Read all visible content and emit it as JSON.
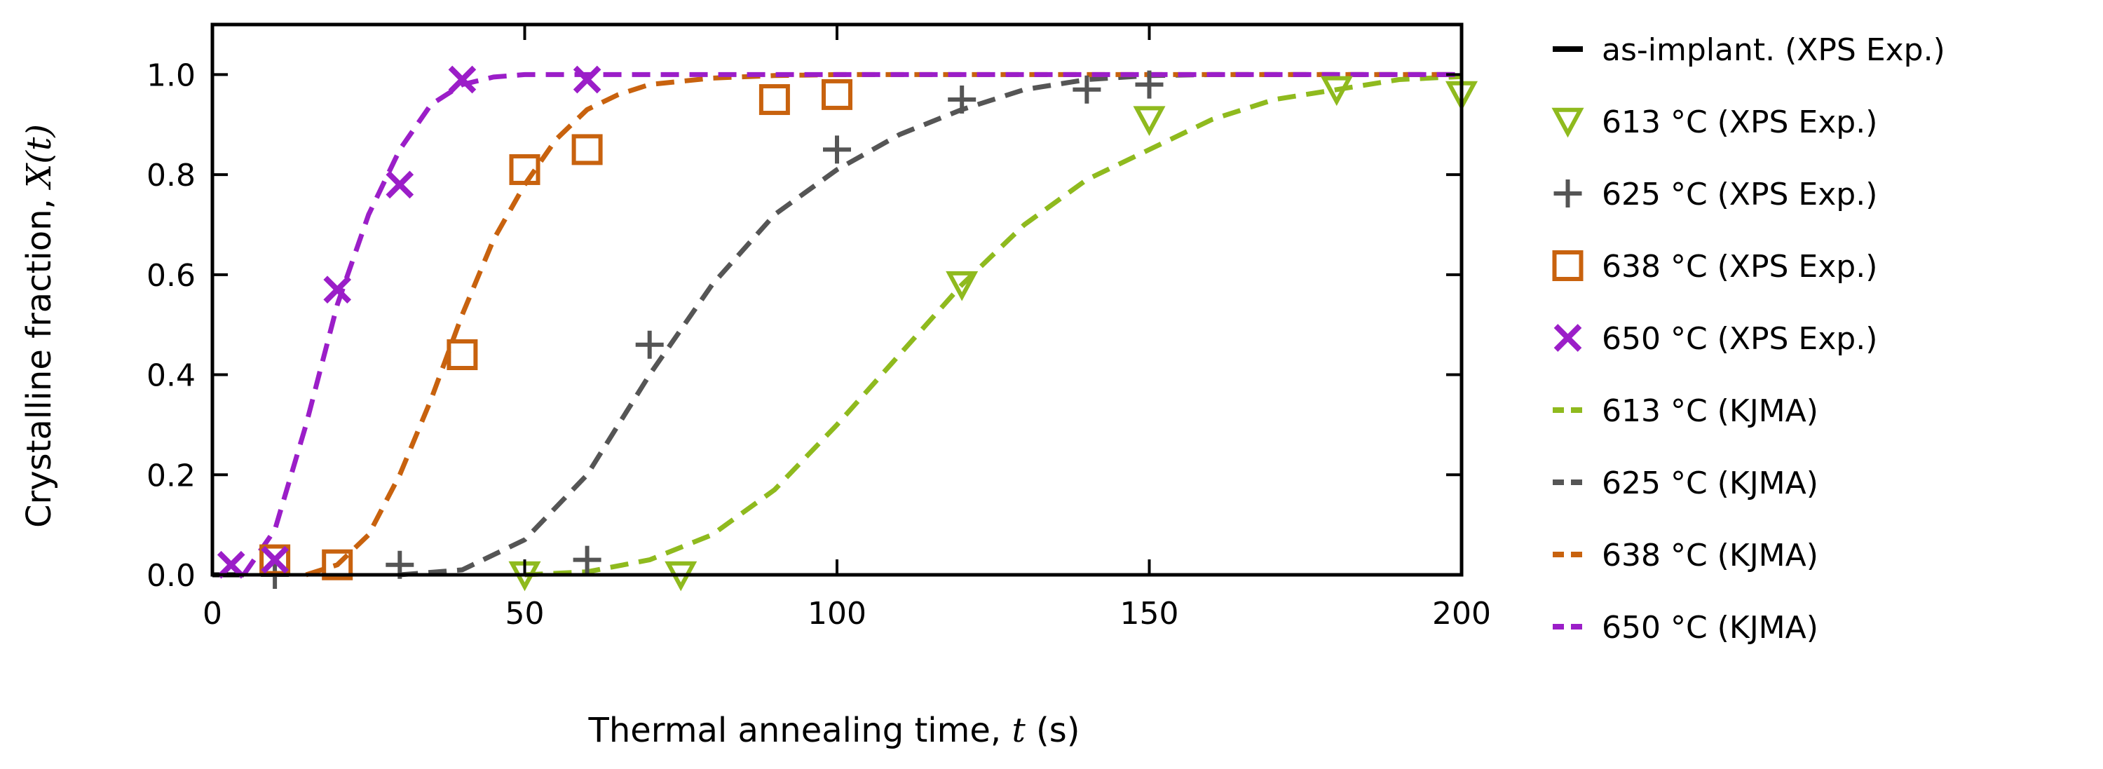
{
  "chart_data": {
    "type": "scatter",
    "title": "",
    "xlabel": {
      "text": "Thermal annealing time, ",
      "var": "t",
      "unit": " (s)"
    },
    "ylabel": {
      "text": "Crystalline fraction, ",
      "func": "X(t)"
    },
    "xlim": [
      0,
      200
    ],
    "ylim": [
      0,
      1.1
    ],
    "xticks": [
      0,
      50,
      100,
      150,
      200
    ],
    "xtick_labels": [
      "0",
      "50",
      "100",
      "150",
      "200"
    ],
    "yticks": [
      0,
      0.2,
      0.4,
      0.6,
      0.8,
      1.0
    ],
    "ytick_labels": [
      "0.0",
      "0.2",
      "0.4",
      "0.6",
      "0.8",
      "1.0"
    ],
    "grid": false,
    "legend_position": "outside-right",
    "series": [
      {
        "name": "as-implant. (XPS Exp.)",
        "kind": "line",
        "style": "solid",
        "color": "#000000",
        "x": [
          0,
          5
        ],
        "y": [
          0,
          0
        ]
      },
      {
        "name": "613 °C (XPS Exp.)",
        "kind": "marker",
        "marker": "triangle-down",
        "color": "#8fba1e",
        "x": [
          50,
          75,
          120,
          150,
          180,
          200
        ],
        "y": [
          0.0,
          0.0,
          0.58,
          0.91,
          0.97,
          0.96
        ]
      },
      {
        "name": "625 °C (XPS Exp.)",
        "kind": "marker",
        "marker": "plus",
        "color": "#555555",
        "x": [
          10,
          30,
          60,
          70,
          100,
          120,
          140,
          150
        ],
        "y": [
          0.0,
          0.02,
          0.03,
          0.46,
          0.85,
          0.95,
          0.97,
          0.98
        ]
      },
      {
        "name": "638 °C (XPS Exp.)",
        "kind": "marker",
        "marker": "square",
        "color": "#c8620e",
        "x": [
          10,
          20,
          40,
          50,
          60,
          90,
          100
        ],
        "y": [
          0.03,
          0.02,
          0.44,
          0.81,
          0.85,
          0.95,
          0.96
        ]
      },
      {
        "name": "650 °C (XPS Exp.)",
        "kind": "marker",
        "marker": "cross",
        "color": "#9b1ec8",
        "x": [
          3,
          10,
          20,
          30,
          40,
          60
        ],
        "y": [
          0.02,
          0.03,
          0.57,
          0.78,
          0.99,
          0.99
        ]
      },
      {
        "name": "613 °C (KJMA)",
        "kind": "line",
        "style": "dashed",
        "color": "#8fba1e",
        "x": [
          50,
          60,
          70,
          80,
          90,
          100,
          110,
          120,
          130,
          140,
          150,
          160,
          170,
          180,
          190,
          200
        ],
        "y": [
          0.0,
          0.006,
          0.03,
          0.08,
          0.17,
          0.3,
          0.44,
          0.58,
          0.7,
          0.79,
          0.85,
          0.91,
          0.95,
          0.97,
          0.99,
          0.996
        ]
      },
      {
        "name": "625 °C (KJMA)",
        "kind": "line",
        "style": "dashed",
        "color": "#555555",
        "x": [
          30,
          40,
          50,
          60,
          70,
          80,
          90,
          100,
          110,
          120,
          130,
          140,
          150,
          160,
          170,
          180,
          190,
          200
        ],
        "y": [
          0.0,
          0.01,
          0.07,
          0.2,
          0.4,
          0.58,
          0.72,
          0.81,
          0.88,
          0.93,
          0.97,
          0.99,
          0.998,
          1.0,
          1.0,
          1.0,
          1.0,
          1.0
        ]
      },
      {
        "name": "638 °C (KJMA)",
        "kind": "line",
        "style": "dashed",
        "color": "#c8620e",
        "x": [
          15,
          20,
          25,
          30,
          35,
          40,
          45,
          50,
          55,
          60,
          65,
          70,
          80,
          90,
          100,
          120,
          150,
          200
        ],
        "y": [
          0.0,
          0.02,
          0.08,
          0.2,
          0.35,
          0.52,
          0.67,
          0.78,
          0.87,
          0.93,
          0.96,
          0.98,
          0.993,
          0.998,
          1.0,
          1.0,
          1.0,
          1.0
        ]
      },
      {
        "name": "650 °C (KJMA)",
        "kind": "line",
        "style": "dashed",
        "color": "#9b1ec8",
        "x": [
          5,
          10,
          15,
          20,
          25,
          30,
          35,
          40,
          45,
          50,
          60,
          80,
          100,
          150,
          200
        ],
        "y": [
          0.0,
          0.09,
          0.3,
          0.54,
          0.72,
          0.85,
          0.94,
          0.98,
          0.995,
          1.0,
          1.0,
          1.0,
          1.0,
          1.0,
          1.0
        ]
      }
    ]
  }
}
